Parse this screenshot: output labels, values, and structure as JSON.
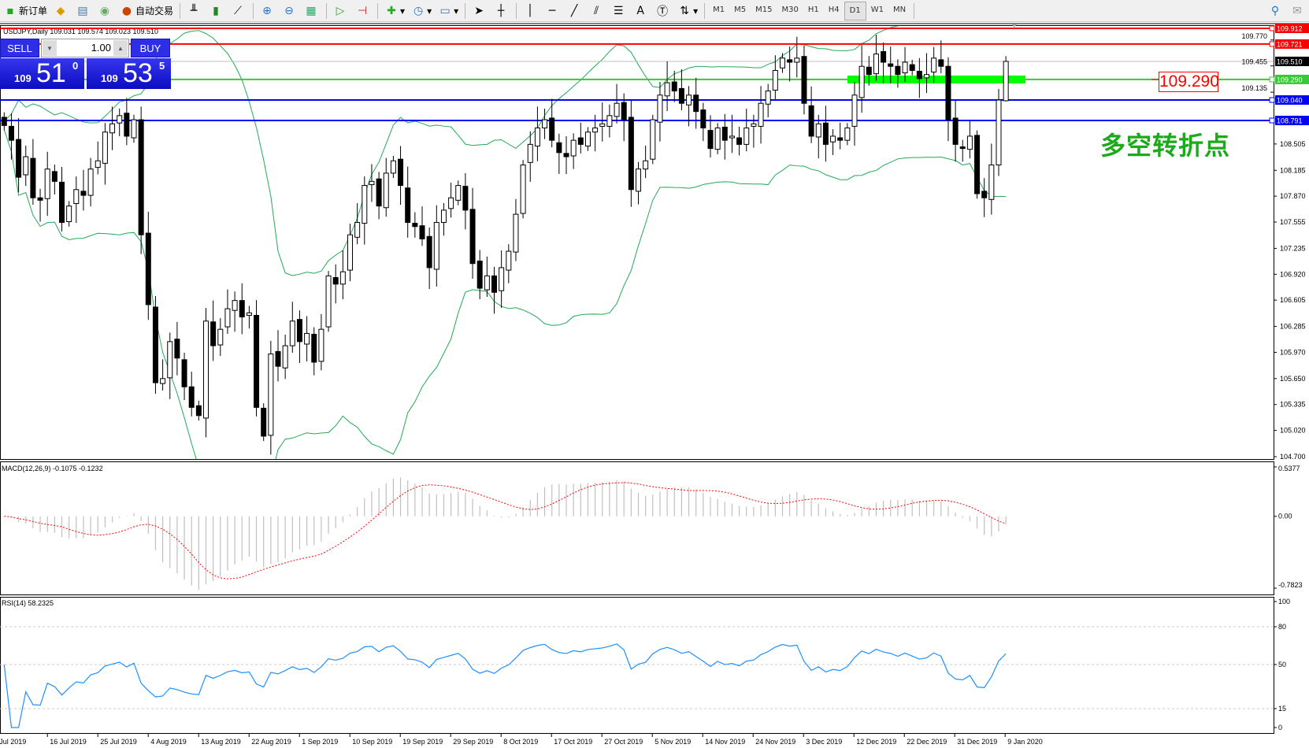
{
  "toolbar": {
    "new_order": "新订单",
    "auto_trading": "自动交易",
    "timeframes": [
      "M1",
      "M5",
      "M15",
      "M30",
      "H1",
      "H4",
      "D1",
      "W1",
      "MN"
    ],
    "active_timeframe": "D1",
    "text_tool": "A"
  },
  "chart": {
    "header": "USDJPY,Daily  109.031 109.574 109.023 109.510",
    "symbol": "USDJPY",
    "price_ticks": [
      "108.505",
      "108.185",
      "107.870",
      "107.555",
      "107.235",
      "106.920",
      "106.605",
      "106.285",
      "105.970",
      "105.650",
      "105.335",
      "105.020",
      "104.700"
    ],
    "price_range": [
      104.7,
      109.912
    ],
    "faded_ticks": [
      {
        "label": "109.770",
        "value": 109.77
      },
      {
        "label": "109.455",
        "value": 109.455
      },
      {
        "label": "109.135",
        "value": 109.135
      }
    ],
    "levels": [
      {
        "label": "109.912",
        "value": 109.912,
        "color": "#ff0000"
      },
      {
        "label": "109.721",
        "value": 109.721,
        "color": "#ff0000"
      },
      {
        "label": "109.510",
        "value": 109.51,
        "color": "#000000",
        "line": "#c0c0c0"
      },
      {
        "label": "109.290",
        "value": 109.29,
        "color": "#33cc33"
      },
      {
        "label": "109.040",
        "value": 109.04,
        "color": "#0000ff"
      },
      {
        "label": "108.791",
        "value": 108.791,
        "color": "#0000ff"
      }
    ],
    "zone_level": 109.29,
    "zone_color": "#00ff00",
    "label_box": "109.290",
    "annotation": "多空转折点",
    "annotation_color": "#1aaa1a",
    "closes": [
      108.73,
      108.55,
      108.1,
      108.35,
      107.85,
      107.82,
      108.2,
      108.05,
      107.55,
      107.75,
      107.95,
      107.88,
      108.2,
      108.3,
      108.65,
      108.75,
      108.85,
      108.6,
      108.8,
      107.4,
      106.55,
      105.6,
      105.65,
      106.1,
      105.9,
      105.55,
      105.3,
      105.2,
      106.35,
      106.05,
      106.25,
      106.5,
      106.6,
      106.4,
      106.45,
      105.3,
      104.95,
      105.95,
      105.8,
      106.05,
      106.35,
      106.1,
      106.2,
      105.85,
      106.25,
      106.9,
      106.8,
      106.95,
      107.4,
      107.55,
      108.0,
      108.05,
      107.75,
      108.15,
      108.3,
      108.0,
      107.55,
      107.5,
      107.35,
      107.0,
      107.55,
      107.7,
      107.85,
      108.0,
      107.7,
      107.05,
      106.75,
      106.9,
      106.7,
      107.0,
      107.2,
      107.65,
      108.25,
      108.5,
      108.7,
      108.8,
      108.55,
      108.4,
      108.35,
      108.55,
      108.5,
      108.65,
      108.7,
      108.75,
      108.85,
      109.0,
      108.8,
      107.95,
      108.2,
      108.3,
      108.8,
      109.1,
      109.25,
      109.15,
      109.0,
      109.1,
      108.9,
      108.7,
      108.45,
      108.7,
      108.55,
      108.6,
      108.5,
      108.7,
      108.75,
      109.0,
      109.15,
      109.4,
      109.55,
      109.5,
      109.55,
      109.0,
      108.6,
      108.75,
      108.5,
      108.6,
      108.55,
      108.7,
      109.1,
      109.45,
      109.35,
      109.6,
      109.5,
      109.45,
      109.35,
      109.5,
      109.4,
      109.3,
      109.35,
      109.55,
      109.45,
      108.8,
      108.5,
      108.45,
      108.6,
      107.9,
      107.85,
      108.25,
      109.04,
      109.51
    ],
    "last_bar": {
      "open": 109.031,
      "high": 109.574,
      "low": 109.023,
      "close": 109.51
    },
    "band_color": "#22aa55"
  },
  "trade": {
    "sell": "SELL",
    "buy": "BUY",
    "lot": "1.00",
    "bid_small": "109",
    "bid_big": "51",
    "bid_sup": "0",
    "ask_small": "109",
    "ask_big": "53",
    "ask_sup": "5"
  },
  "macd": {
    "label": "MACD(12,26,9) -0.1075 -0.1232",
    "ticks": [
      "0.5377",
      "0.00",
      "-0.7823"
    ],
    "range": [
      -0.7823,
      0.5377
    ],
    "signal_color": "#ff0000",
    "hist_color": "#c0c0c0"
  },
  "rsi": {
    "label": "RSI(14) 58.2325",
    "ticks": [
      "100",
      "80",
      "50",
      "15",
      "0"
    ],
    "levels": [
      80,
      50,
      15
    ],
    "color": "#1e90ff"
  },
  "dates": [
    "Jul 2019",
    "16 Jul 2019",
    "25 Jul 2019",
    "4 Aug 2019",
    "13 Aug 2019",
    "22 Aug 2019",
    "1 Sep 2019",
    "10 Sep 2019",
    "19 Sep 2019",
    "29 Sep 2019",
    "8 Oct 2019",
    "17 Oct 2019",
    "27 Oct 2019",
    "5 Nov 2019",
    "14 Nov 2019",
    "24 Nov 2019",
    "3 Dec 2019",
    "12 Dec 2019",
    "22 Dec 2019",
    "31 Dec 2019",
    "9 Jan 2020"
  ]
}
